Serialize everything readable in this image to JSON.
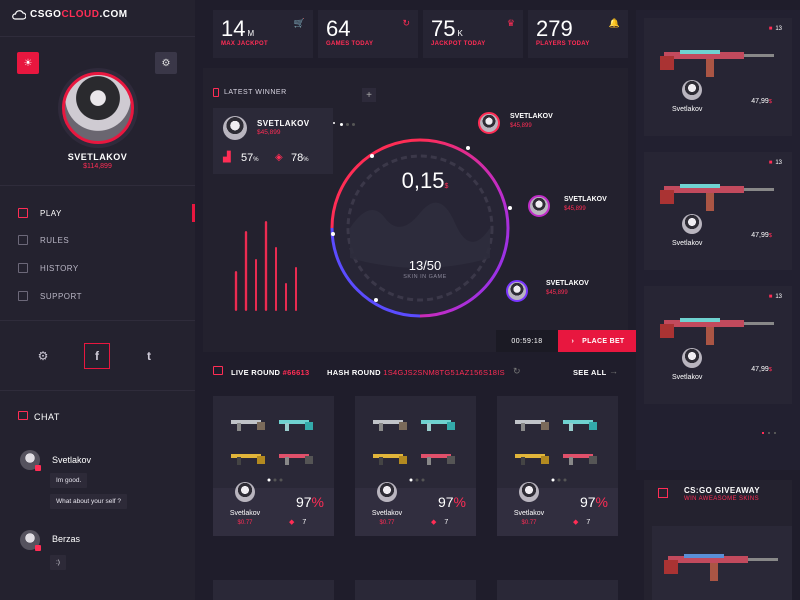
{
  "brand": {
    "prefix": "CSGO",
    "accent": "CLOUD",
    "suffix": ".COM"
  },
  "user": {
    "name": "SVETLAKOV",
    "balance": "$114,899"
  },
  "nav": [
    {
      "label": "PLAY",
      "icon": "home-icon",
      "active": true
    },
    {
      "label": "RULES",
      "icon": "edit-icon",
      "active": false
    },
    {
      "label": "HISTORY",
      "icon": "history-icon",
      "active": false
    },
    {
      "label": "SUPPORT",
      "icon": "support-icon",
      "active": false
    }
  ],
  "social": {
    "facebook": "f",
    "twitter": "t"
  },
  "chat": {
    "title": "CHAT",
    "messages": [
      {
        "name": "Svetlakov",
        "lines": [
          "Im good.",
          "What about your self ?"
        ]
      },
      {
        "name": "Berzas",
        "lines": [
          ":)"
        ]
      }
    ]
  },
  "stats": [
    {
      "value": "14",
      "unit": "M",
      "label": "MAX JACKPOT",
      "icon": "cart-icon"
    },
    {
      "value": "64",
      "unit": "",
      "label": "GAMES TODAY",
      "icon": "refresh-icon"
    },
    {
      "value": "75",
      "unit": "K",
      "label": "JACKPOT TODAY",
      "icon": "trophy-icon"
    },
    {
      "value": "279",
      "unit": "",
      "label": "PLAYERS TODAY",
      "icon": "bell-icon"
    }
  ],
  "latest_winner": {
    "title": "LATEST WINNER",
    "name": "SVETLAKOV",
    "money": "$45,899",
    "stat1": "57",
    "stat1_unit": "%",
    "stat2": "78",
    "stat2_unit": "%"
  },
  "wheel": {
    "amount": "0,15",
    "currency": "$",
    "skins": "13/50",
    "skins_label": "SKIN IN GAME"
  },
  "orbit_players": [
    {
      "name": "SVETLAKOV",
      "money": "$45,899"
    },
    {
      "name": "SVETLAKOV",
      "money": "$45,899"
    },
    {
      "name": "SVETLAKOV",
      "money": "$45,899"
    }
  ],
  "timer": "00:59:18",
  "place_bet": "PLACE BET",
  "live_round": {
    "label": "LIVE ROUND",
    "id": "#66613",
    "hash_label": "HASH ROUND",
    "hash": "1S4GJS2SNM8TG51AZ156S18IS",
    "see_all": "SEE ALL"
  },
  "round_cards": [
    {
      "name": "Svetlakov",
      "value": "$0.77",
      "pct": "97",
      "count": "7"
    },
    {
      "name": "Svetlakov",
      "value": "$0.77",
      "pct": "97",
      "count": "7"
    },
    {
      "name": "Svetlakov",
      "value": "$0.77",
      "pct": "97",
      "count": "7"
    }
  ],
  "right_cards": [
    {
      "count": "13",
      "name": "Svetlakov",
      "price": "47,99",
      "currency": "$"
    },
    {
      "count": "13",
      "name": "Svetlakov",
      "price": "47,99",
      "currency": "$"
    },
    {
      "count": "13",
      "name": "Svetlakov",
      "price": "47,99",
      "currency": "$"
    }
  ],
  "giveaway": {
    "title": "CS:GO GIVEAWAY",
    "subtitle": "WIN AWEASOME SKINS"
  },
  "colors": {
    "accent": "#ff2d55",
    "bg": "#1f1d2b",
    "panel": "#24222f"
  }
}
